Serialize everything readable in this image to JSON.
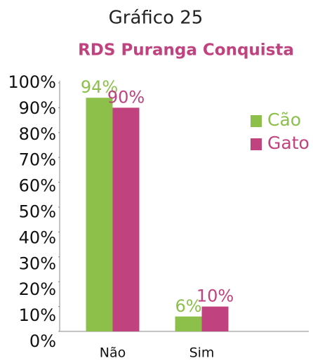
{
  "chart_data": {
    "type": "bar",
    "title": "Gráfico 25",
    "subtitle": "RDS Puranga Conquista",
    "categories": [
      "Não",
      "Sim"
    ],
    "series": [
      {
        "name": "Cão",
        "color": "#8cc04b",
        "values": [
          94,
          6
        ],
        "value_labels": [
          "94%",
          "6%"
        ]
      },
      {
        "name": "Gato",
        "color": "#c0427f",
        "values": [
          90,
          10
        ],
        "value_labels": [
          "90%",
          "10%"
        ]
      }
    ],
    "ylim": [
      0,
      100
    ],
    "yticks": [
      {
        "value": 0,
        "label": "0%"
      },
      {
        "value": 10,
        "label": "10%"
      },
      {
        "value": 20,
        "label": "20%"
      },
      {
        "value": 30,
        "label": "30%"
      },
      {
        "value": 40,
        "label": "40%"
      },
      {
        "value": 50,
        "label": "50%"
      },
      {
        "value": 60,
        "label": "60%"
      },
      {
        "value": 70,
        "label": "70%"
      },
      {
        "value": 80,
        "label": "80%"
      },
      {
        "value": 90,
        "label": "90%"
      },
      {
        "value": 100,
        "label": "100%"
      }
    ],
    "legend": "right"
  }
}
